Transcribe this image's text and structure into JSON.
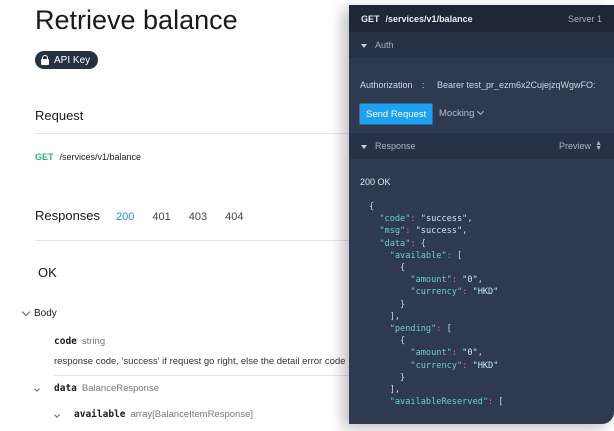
{
  "doc": {
    "title": "Retrieve balance",
    "badge": "API Key",
    "request_heading": "Request",
    "method": "GET",
    "path": "/services/v1/balance",
    "responses_label": "Responses",
    "response_tabs": [
      "200",
      "401",
      "403",
      "404"
    ],
    "active_tab": "200",
    "ok": "OK",
    "body": "Body",
    "fields": [
      {
        "name": "code",
        "type": "string",
        "desc": "response code, 'success' if request go right,  else the detail error code"
      },
      {
        "name": "data",
        "type": "BalanceResponse"
      },
      {
        "name": "available",
        "type": "array[BalanceItemResponse]"
      }
    ]
  },
  "panel": {
    "method": "GET",
    "path": "/services/v1/balance",
    "server": "Server 1",
    "auth_label": "Auth",
    "auth_key": "Authorization",
    "auth_sep": ":",
    "auth_value": "Bearer test_pr_ezm6x2CujejzqWgwFO:",
    "send": "Send Request",
    "mocking": "Mocking",
    "response_label": "Response",
    "preview": "Preview",
    "status": "200 OK",
    "code_lines": [
      [
        [
          "p",
          "{"
        ]
      ],
      [
        [
          "p",
          "  "
        ],
        [
          "k",
          "\"code\""
        ],
        [
          "c",
          ": "
        ],
        [
          "s",
          "\"success\""
        ],
        [
          "p",
          ","
        ]
      ],
      [
        [
          "p",
          "  "
        ],
        [
          "k",
          "\"msg\""
        ],
        [
          "c",
          ": "
        ],
        [
          "s",
          "\"success\""
        ],
        [
          "p",
          ","
        ]
      ],
      [
        [
          "p",
          "  "
        ],
        [
          "k",
          "\"data\""
        ],
        [
          "c",
          ": "
        ],
        [
          "p",
          "{"
        ]
      ],
      [
        [
          "p",
          "    "
        ],
        [
          "k",
          "\"available\""
        ],
        [
          "c",
          ": "
        ],
        [
          "p",
          "["
        ]
      ],
      [
        [
          "p",
          "      {"
        ]
      ],
      [
        [
          "p",
          "        "
        ],
        [
          "k",
          "\"amount\""
        ],
        [
          "c",
          ": "
        ],
        [
          "s",
          "\"0\""
        ],
        [
          "p",
          ","
        ]
      ],
      [
        [
          "p",
          "        "
        ],
        [
          "k",
          "\"currency\""
        ],
        [
          "c",
          ": "
        ],
        [
          "s",
          "\"HKD\""
        ]
      ],
      [
        [
          "p",
          "      }"
        ]
      ],
      [
        [
          "p",
          "    ],"
        ]
      ],
      [
        [
          "p",
          "    "
        ],
        [
          "k",
          "\"pending\""
        ],
        [
          "c",
          ": "
        ],
        [
          "p",
          "["
        ]
      ],
      [
        [
          "p",
          "      {"
        ]
      ],
      [
        [
          "p",
          "        "
        ],
        [
          "k",
          "\"amount\""
        ],
        [
          "c",
          ": "
        ],
        [
          "s",
          "\"0\""
        ],
        [
          "p",
          ","
        ]
      ],
      [
        [
          "p",
          "        "
        ],
        [
          "k",
          "\"currency\""
        ],
        [
          "c",
          ": "
        ],
        [
          "s",
          "\"HKD\""
        ]
      ],
      [
        [
          "p",
          "      }"
        ]
      ],
      [
        [
          "p",
          "    ],"
        ]
      ],
      [
        [
          "p",
          "    "
        ],
        [
          "k",
          "\"availableReserved\""
        ],
        [
          "c",
          ": "
        ],
        [
          "p",
          "["
        ]
      ]
    ]
  },
  "colors": {
    "accent": "#1da1f2",
    "get": "#2bb673",
    "active_tab": "#1d8fe0"
  }
}
